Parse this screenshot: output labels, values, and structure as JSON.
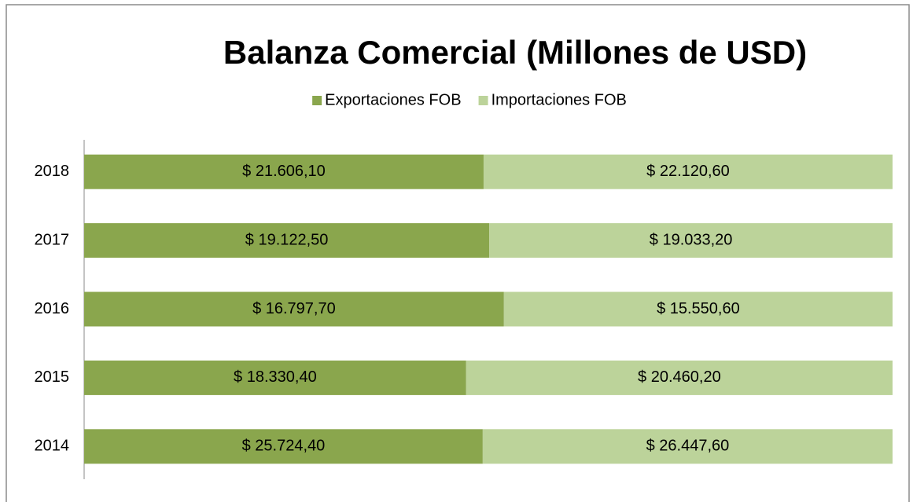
{
  "chart_data": {
    "type": "bar",
    "orientation": "horizontal",
    "stack": "percent",
    "title": "Balanza Comercial  (Millones de USD)",
    "categories": [
      "2014",
      "2015",
      "2016",
      "2017",
      "2018"
    ],
    "series": [
      {
        "name": "Exportaciones FOB",
        "color": "#8aa64d",
        "values": [
          25724.4,
          18330.4,
          16797.7,
          19122.5,
          21606.1
        ],
        "value_labels": [
          "$ 25.724,40",
          "$ 18.330,40",
          "$ 16.797,70",
          "$ 19.122,50",
          "$ 21.606,10"
        ]
      },
      {
        "name": "Importaciones FOB",
        "color": "#bcd39a",
        "values": [
          26447.6,
          20460.2,
          15550.6,
          19033.2,
          22120.6
        ],
        "value_labels": [
          "$ 26.447,60",
          "$ 20.460,20",
          "$ 15.550,60",
          "$ 19.033,20",
          "$ 22.120,60"
        ]
      }
    ],
    "legend": "top"
  }
}
